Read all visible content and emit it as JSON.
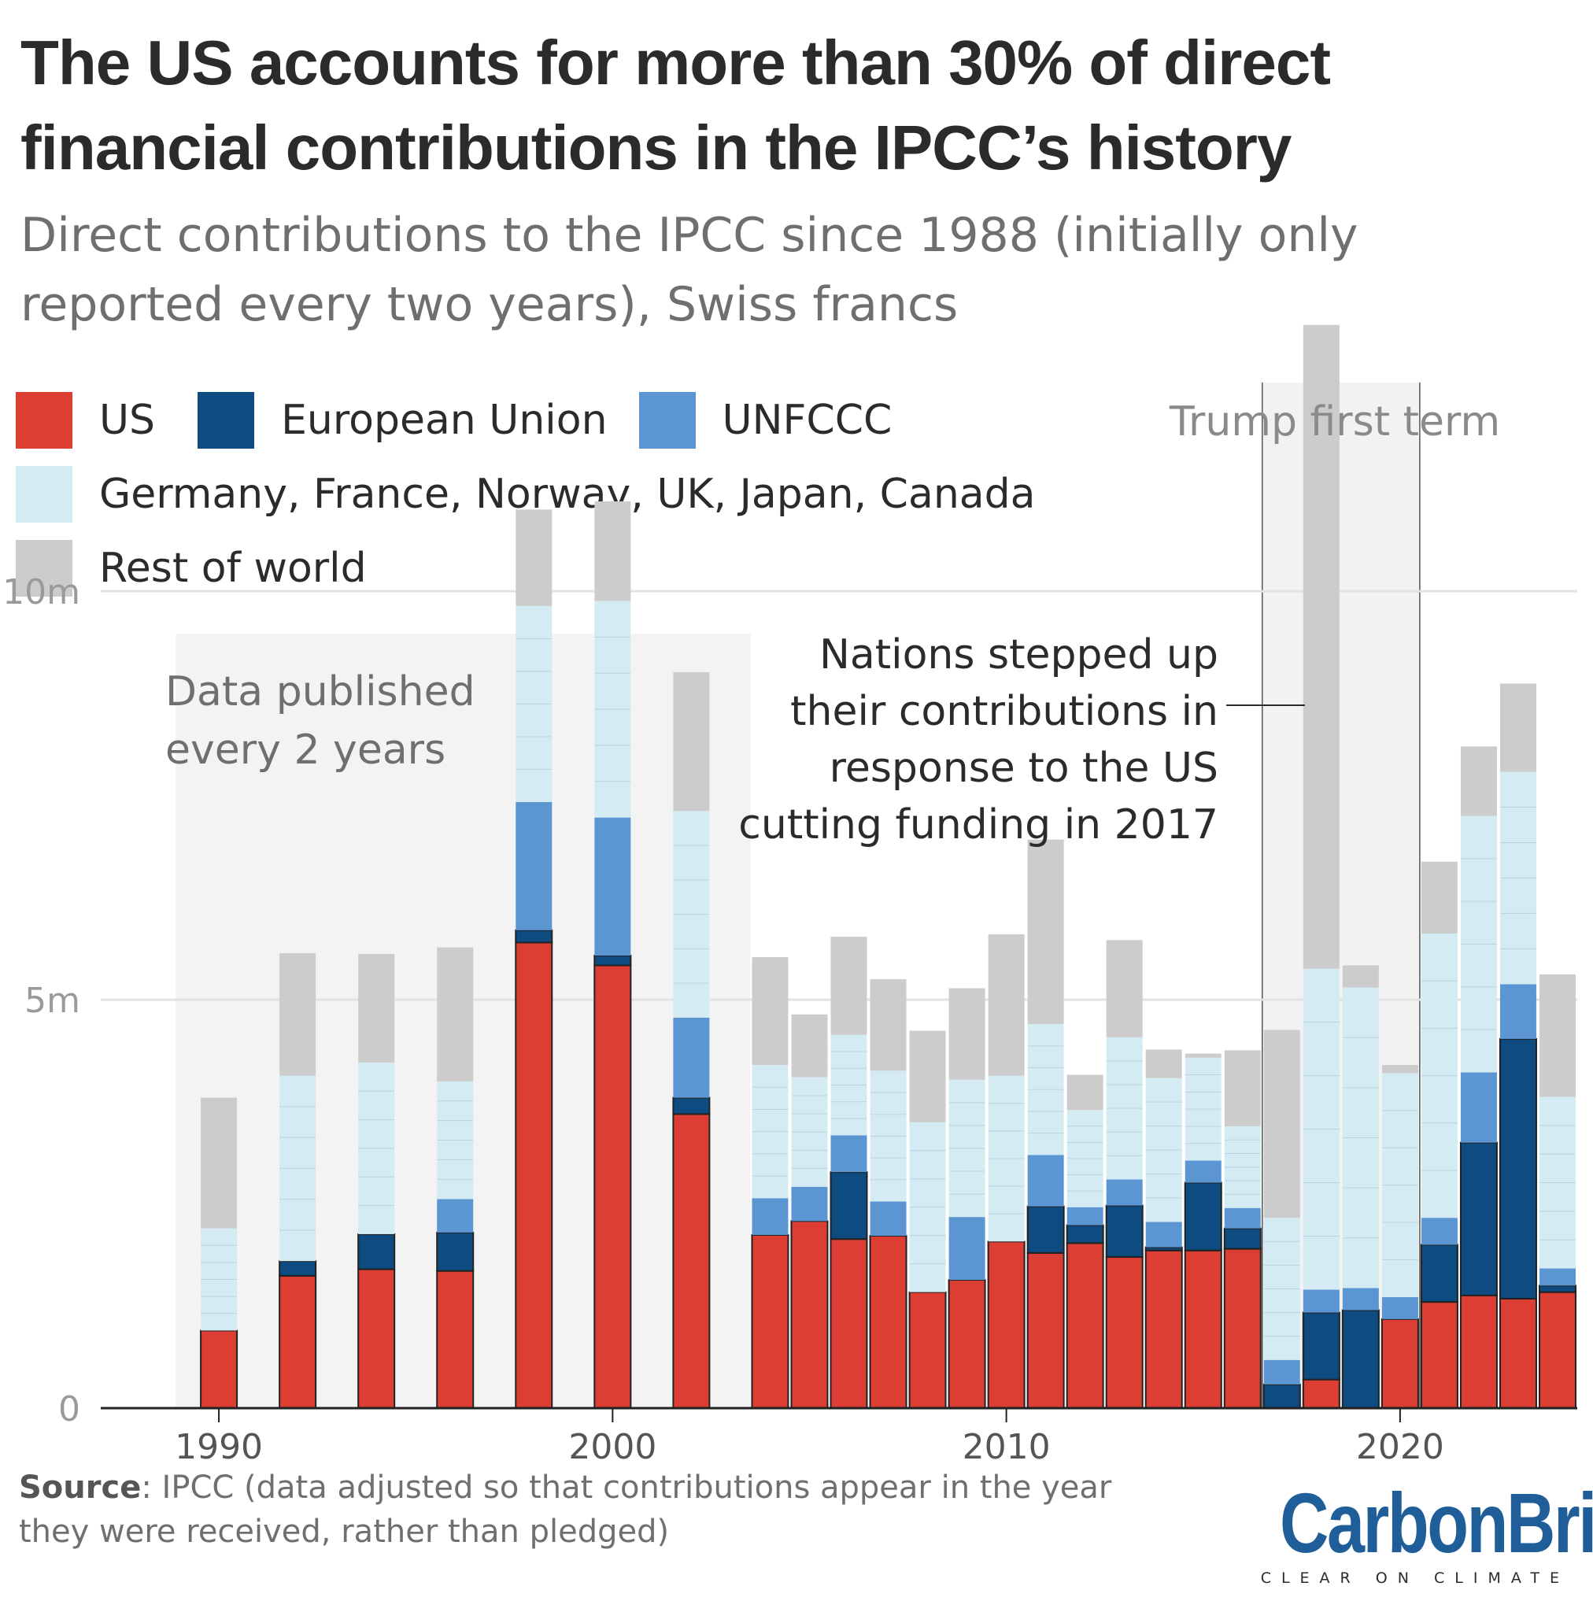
{
  "title": "The US accounts for more than 30% of direct financial contributions in the IPCC’s history",
  "subtitle": "Direct contributions to the IPCC since 1988 (initially only reported every two years), Swiss francs",
  "legend": [
    {
      "key": "us",
      "label": "US",
      "color": "#dc3e33"
    },
    {
      "key": "eu",
      "label": "European Union",
      "color": "#0d4b80"
    },
    {
      "key": "unfccc",
      "label": "UNFCCC",
      "color": "#5b96d3"
    },
    {
      "key": "major",
      "label": "Germany, France, Norway, UK, Japan, Canada",
      "color": "#d4ebf3"
    },
    {
      "key": "row",
      "label": "Rest of world",
      "color": "#cccccc"
    }
  ],
  "annotations": {
    "biennial": [
      "Data published",
      "every 2 years"
    ],
    "trump": "Trump first term",
    "response": [
      "Nations stepped up",
      "their contributions in",
      "response to the US",
      "cutting funding in 2017"
    ]
  },
  "source": {
    "label": "Source",
    "text": ": IPCC (data adjusted so that contributions appear in the year they were received, rather than pledged)"
  },
  "logo": {
    "name": "CarbonBrief",
    "tagline": "CLEAR ON CLIMATE"
  },
  "chart_data": {
    "type": "bar",
    "stacked": true,
    "unit": "Swiss francs",
    "x_ticks": [
      1990,
      2000,
      2010,
      2020
    ],
    "y_ticks": [
      {
        "value": 0,
        "label": "0"
      },
      {
        "value": 5000000,
        "label": "5m"
      },
      {
        "value": 10000000,
        "label": "10m"
      }
    ],
    "ylim": [
      0,
      14000000
    ],
    "xlim": [
      1987,
      2024.5
    ],
    "highlight_ranges": [
      {
        "name": "biennial-reporting",
        "from": 1988.9,
        "to": 2003.5
      },
      {
        "name": "trump-first-term",
        "from": 2016.5,
        "to": 2020.5
      }
    ],
    "series_keys": [
      "us",
      "eu",
      "unfccc",
      "major",
      "row"
    ],
    "bars": [
      {
        "year": 1990,
        "us": 0.95,
        "eu": 0.0,
        "unfccc": 0.0,
        "major": 1.25,
        "row": 1.6
      },
      {
        "year": 1992,
        "us": 1.62,
        "eu": 0.18,
        "unfccc": 0.0,
        "major": 2.27,
        "row": 1.5
      },
      {
        "year": 1994,
        "us": 1.7,
        "eu": 0.43,
        "unfccc": 0.0,
        "major": 2.1,
        "row": 1.33
      },
      {
        "year": 1996,
        "us": 1.68,
        "eu": 0.47,
        "unfccc": 0.41,
        "major": 1.44,
        "row": 1.64
      },
      {
        "year": 1998,
        "us": 5.7,
        "eu": 0.15,
        "unfccc": 1.57,
        "major": 2.4,
        "row": 1.18
      },
      {
        "year": 2000,
        "us": 5.42,
        "eu": 0.12,
        "unfccc": 1.69,
        "major": 2.65,
        "row": 1.22
      },
      {
        "year": 2002,
        "us": 3.6,
        "eu": 0.2,
        "unfccc": 0.98,
        "major": 2.53,
        "row": 1.7
      },
      {
        "year": 2004,
        "us": 2.12,
        "eu": 0.0,
        "unfccc": 0.45,
        "major": 1.63,
        "row": 1.32
      },
      {
        "year": 2005,
        "us": 2.29,
        "eu": 0.0,
        "unfccc": 0.42,
        "major": 1.34,
        "row": 0.77
      },
      {
        "year": 2006,
        "us": 2.07,
        "eu": 0.82,
        "unfccc": 0.45,
        "major": 1.23,
        "row": 1.2
      },
      {
        "year": 2007,
        "us": 2.11,
        "eu": 0.0,
        "unfccc": 0.42,
        "major": 1.6,
        "row": 1.12
      },
      {
        "year": 2008,
        "us": 1.42,
        "eu": 0.0,
        "unfccc": 0.0,
        "major": 2.08,
        "row": 1.12
      },
      {
        "year": 2009,
        "us": 1.57,
        "eu": 0.0,
        "unfccc": 0.77,
        "major": 1.68,
        "row": 1.12
      },
      {
        "year": 2010,
        "us": 2.04,
        "eu": 0.0,
        "unfccc": 0.0,
        "major": 2.03,
        "row": 1.73
      },
      {
        "year": 2011,
        "us": 1.9,
        "eu": 0.57,
        "unfccc": 0.63,
        "major": 1.6,
        "row": 2.26
      },
      {
        "year": 2012,
        "us": 2.02,
        "eu": 0.22,
        "unfccc": 0.22,
        "major": 1.19,
        "row": 0.43
      },
      {
        "year": 2013,
        "us": 1.85,
        "eu": 0.63,
        "unfccc": 0.32,
        "major": 1.74,
        "row": 1.19
      },
      {
        "year": 2014,
        "us": 1.93,
        "eu": 0.04,
        "unfccc": 0.31,
        "major": 1.76,
        "row": 0.35
      },
      {
        "year": 2015,
        "us": 1.93,
        "eu": 0.83,
        "unfccc": 0.27,
        "major": 1.26,
        "row": 0.05
      },
      {
        "year": 2016,
        "us": 1.95,
        "eu": 0.25,
        "unfccc": 0.25,
        "major": 1.0,
        "row": 0.93
      },
      {
        "year": 2017,
        "us": 0.0,
        "eu": 0.29,
        "unfccc": 0.3,
        "major": 1.74,
        "row": 2.3
      },
      {
        "year": 2018,
        "us": 0.35,
        "eu": 0.82,
        "unfccc": 0.28,
        "major": 3.93,
        "row": 7.88
      },
      {
        "year": 2019,
        "us": 0.0,
        "eu": 1.2,
        "unfccc": 0.27,
        "major": 3.68,
        "row": 0.27
      },
      {
        "year": 2020,
        "us": 1.09,
        "eu": 0.0,
        "unfccc": 0.27,
        "major": 2.74,
        "row": 0.1
      },
      {
        "year": 2021,
        "us": 1.3,
        "eu": 0.7,
        "unfccc": 0.33,
        "major": 3.48,
        "row": 0.88
      },
      {
        "year": 2022,
        "us": 1.38,
        "eu": 1.87,
        "unfccc": 0.86,
        "major": 3.14,
        "row": 0.85
      },
      {
        "year": 2023,
        "us": 1.34,
        "eu": 3.18,
        "unfccc": 0.67,
        "major": 2.6,
        "row": 1.08
      },
      {
        "year": 2024,
        "us": 1.42,
        "eu": 0.08,
        "unfccc": 0.21,
        "major": 2.1,
        "row": 1.5
      }
    ]
  }
}
